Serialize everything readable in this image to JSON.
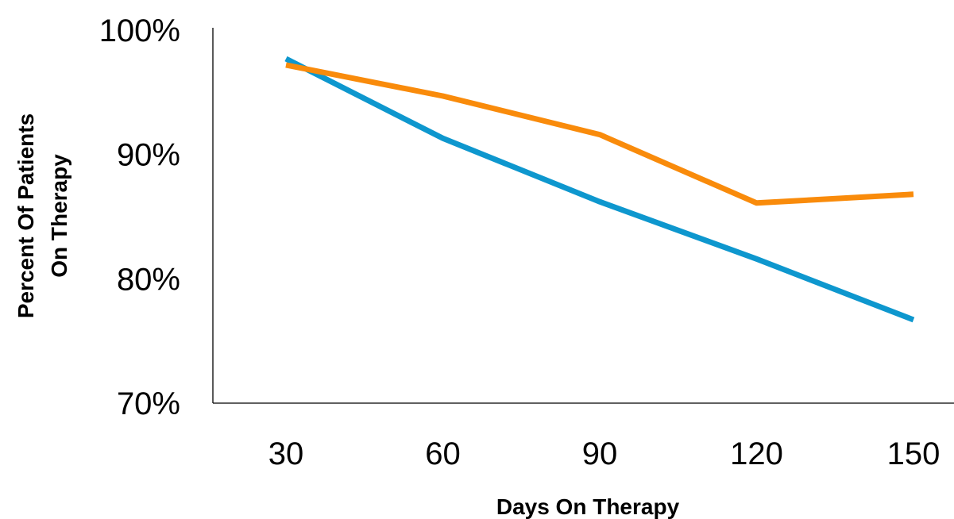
{
  "chart_data": {
    "type": "line",
    "title": "",
    "xlabel": "Days On Therapy",
    "ylabel_lines": [
      "Percent Of Patients",
      "On Therapy"
    ],
    "categories": [
      30,
      60,
      90,
      120,
      150
    ],
    "x_tick_labels": [
      "30",
      "60",
      "90",
      "120",
      "150"
    ],
    "ylim": [
      0.7,
      1.0
    ],
    "y_ticks": [
      0.7,
      0.8,
      0.9,
      1.0
    ],
    "y_tick_labels": [
      "70%",
      "80%",
      "90%",
      "100%"
    ],
    "grid": false,
    "legend": "none",
    "series": [
      {
        "color": "#0E97CE",
        "values": [
          0.977,
          0.913,
          0.862,
          0.816,
          0.767
        ]
      },
      {
        "color": "#F98B0B",
        "values": [
          0.972,
          0.947,
          0.916,
          0.861,
          0.868
        ]
      }
    ]
  }
}
